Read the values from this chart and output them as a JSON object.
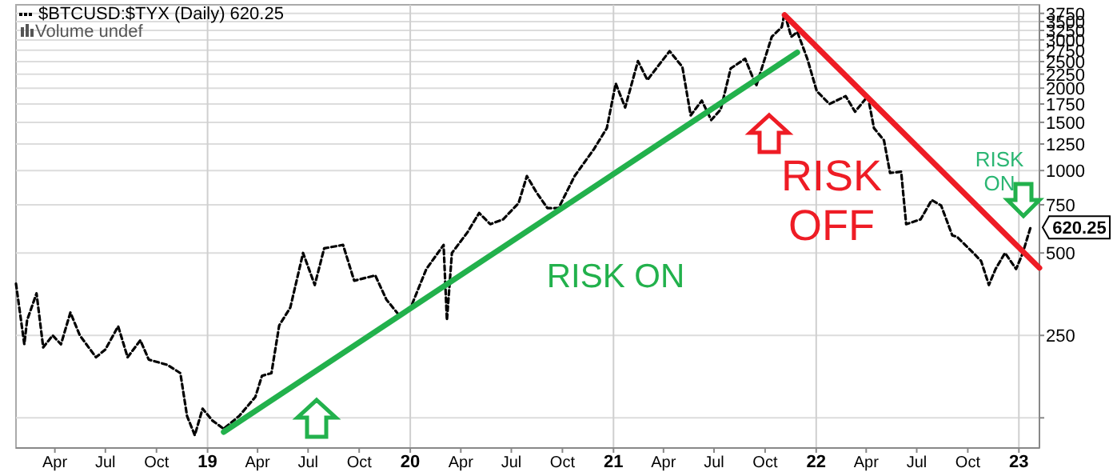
{
  "chart_data": {
    "type": "line",
    "title": "$BTCUSD:$TYX (Daily) 620.25",
    "log": true,
    "grid": true,
    "xlim": [
      "2018-01-21",
      "2023-02-07"
    ],
    "ylim": [
      97,
      4030
    ],
    "xticks": [
      {
        "value": "2018-04-01",
        "label": "Apr"
      },
      {
        "value": "2018-07-01",
        "label": "Jul"
      },
      {
        "value": "2018-10-01",
        "label": "Oct"
      },
      {
        "value": "2019-01-01",
        "label": "19"
      },
      {
        "value": "2019-04-01",
        "label": "Apr"
      },
      {
        "value": "2019-07-01",
        "label": "Jul"
      },
      {
        "value": "2019-10-01",
        "label": "Oct"
      },
      {
        "value": "2020-01-01",
        "label": "20"
      },
      {
        "value": "2020-04-01",
        "label": "Apr"
      },
      {
        "value": "2020-07-01",
        "label": "Jul"
      },
      {
        "value": "2020-10-01",
        "label": "Oct"
      },
      {
        "value": "2021-01-01",
        "label": "21"
      },
      {
        "value": "2021-04-01",
        "label": "Apr"
      },
      {
        "value": "2021-07-01",
        "label": "Jul"
      },
      {
        "value": "2021-10-01",
        "label": "Oct"
      },
      {
        "value": "2022-01-01",
        "label": "22"
      },
      {
        "value": "2022-04-01",
        "label": "Apr"
      },
      {
        "value": "2022-07-01",
        "label": "Jul"
      },
      {
        "value": "2022-10-01",
        "label": "Oct"
      },
      {
        "value": "2023-01-01",
        "label": "23"
      }
    ],
    "yticks": [
      {
        "value": 125,
        "label": null
      },
      250,
      500,
      750,
      1000,
      1250,
      1500,
      1750,
      2000,
      2250,
      2500,
      2750,
      3000,
      3250,
      3500,
      3750
    ],
    "series": [
      {
        "color": "#000000",
        "line_style": "dashed",
        "x": [
          "2018-01-21",
          "2018-02-05",
          "2018-02-10",
          "2018-02-27",
          "2018-03-11",
          "2018-03-28",
          "2018-04-12",
          "2018-04-29",
          "2018-05-16",
          "2018-06-14",
          "2018-07-01",
          "2018-07-24",
          "2018-08-10",
          "2018-09-02",
          "2018-09-17",
          "2018-10-21",
          "2018-11-13",
          "2018-11-25",
          "2018-12-09",
          "2018-12-23",
          "2019-01-10",
          "2019-01-30",
          "2019-02-27",
          "2019-03-28",
          "2019-04-09",
          "2019-04-26",
          "2019-05-10",
          "2019-05-30",
          "2019-06-22",
          "2019-07-13",
          "2019-07-30",
          "2019-09-02",
          "2019-09-22",
          "2019-10-30",
          "2019-11-19",
          "2019-12-12",
          "2020-01-01",
          "2020-01-30",
          "2020-03-01",
          "2020-03-07",
          "2020-03-16",
          "2020-04-13",
          "2020-05-04",
          "2020-05-24",
          "2020-06-16",
          "2020-07-14",
          "2020-07-29",
          "2020-08-15",
          "2020-09-04",
          "2020-09-24",
          "2020-10-23",
          "2020-11-27",
          "2020-12-20",
          "2021-01-05",
          "2021-01-22",
          "2021-02-14",
          "2021-03-03",
          "2021-04-12",
          "2021-05-05",
          "2021-05-20",
          "2021-06-09",
          "2021-06-26",
          "2021-07-13",
          "2021-07-31",
          "2021-08-26",
          "2021-09-15",
          "2021-10-13",
          "2021-10-31",
          "2021-11-05",
          "2021-11-17",
          "2021-11-28",
          "2021-12-16",
          "2022-01-02",
          "2022-01-25",
          "2022-02-23",
          "2022-03-12",
          "2022-04-04",
          "2022-04-15",
          "2022-05-03",
          "2022-05-14",
          "2022-06-03",
          "2022-06-12",
          "2022-07-08",
          "2022-07-28",
          "2022-08-14",
          "2022-09-03",
          "2022-09-12",
          "2022-10-11",
          "2022-10-25",
          "2022-11-08",
          "2022-11-20",
          "2022-12-07",
          "2022-12-27",
          "2023-01-08",
          "2023-01-22"
        ],
        "values": [
          386,
          232,
          284,
          356,
          226,
          250,
          232,
          303,
          250,
          208,
          222,
          270,
          208,
          240,
          204,
          195,
          182,
          127,
          108,
          135,
          122,
          114,
          127,
          149,
          178,
          182,
          272,
          316,
          500,
          382,
          520,
          535,
          396,
          414,
          338,
          296,
          313,
          437,
          535,
          284,
          500,
          595,
          700,
          637,
          663,
          760,
          955,
          834,
          729,
          729,
          955,
          1200,
          1429,
          2080,
          1700,
          2510,
          2142,
          2730,
          2390,
          1590,
          1800,
          1530,
          1670,
          2360,
          2560,
          2040,
          3080,
          3340,
          3760,
          3080,
          3207,
          2560,
          1950,
          1750,
          1870,
          1640,
          1870,
          1429,
          1290,
          980,
          990,
          637,
          663,
          780,
          745,
          580,
          572,
          500,
          467,
          382,
          437,
          500,
          437,
          500,
          620.25
        ]
      },
      {
        "color": "#22b14c",
        "x": [
          "2019-01-30",
          "2021-11-28"
        ],
        "values": [
          111,
          2700
        ]
      },
      {
        "color": "#ee1c25",
        "x": [
          "2021-11-05",
          "2023-02-07"
        ],
        "values": [
          3700,
          441
        ]
      }
    ],
    "annotations": [
      "Volume undef",
      "RISK ON",
      "RISK OFF",
      "RISK ON",
      {
        "text": "620.25",
        "x": "2023-01-22",
        "y": 620.25
      }
    ]
  }
}
